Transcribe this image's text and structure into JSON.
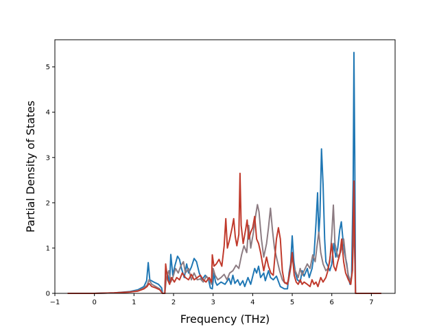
{
  "chart_data": {
    "type": "line",
    "title": "",
    "xlabel": "Frequency (THz)",
    "ylabel": "Partial Density of States",
    "xlim": [
      -1.0,
      7.6
    ],
    "ylim": [
      0,
      5.6
    ],
    "xticks": [
      -1,
      0,
      1,
      2,
      3,
      4,
      5,
      6,
      7
    ],
    "yticks": [
      0,
      1,
      2,
      3,
      4,
      5
    ],
    "grid": false,
    "legend": "none",
    "series": [
      {
        "color": "#1f77b4",
        "points": [
          [
            -0.68,
            0
          ],
          [
            0,
            0
          ],
          [
            0.5,
            0.01
          ],
          [
            0.9,
            0.04
          ],
          [
            1.1,
            0.08
          ],
          [
            1.25,
            0.15
          ],
          [
            1.32,
            0.28
          ],
          [
            1.36,
            0.68
          ],
          [
            1.4,
            0.3
          ],
          [
            1.5,
            0.25
          ],
          [
            1.62,
            0.2
          ],
          [
            1.7,
            0.12
          ],
          [
            1.72,
            0.0
          ],
          [
            1.78,
            0.0
          ],
          [
            1.8,
            0.55
          ],
          [
            1.85,
            0.42
          ],
          [
            1.9,
            0.25
          ],
          [
            1.93,
            0.86
          ],
          [
            1.98,
            0.4
          ],
          [
            2.03,
            0.6
          ],
          [
            2.1,
            0.82
          ],
          [
            2.15,
            0.75
          ],
          [
            2.2,
            0.55
          ],
          [
            2.27,
            0.35
          ],
          [
            2.33,
            0.65
          ],
          [
            2.38,
            0.45
          ],
          [
            2.45,
            0.58
          ],
          [
            2.52,
            0.77
          ],
          [
            2.58,
            0.7
          ],
          [
            2.65,
            0.45
          ],
          [
            2.72,
            0.3
          ],
          [
            2.8,
            0.4
          ],
          [
            2.88,
            0.32
          ],
          [
            2.93,
            0.12
          ],
          [
            2.98,
            0.1
          ],
          [
            3.02,
            0.45
          ],
          [
            3.06,
            0.25
          ],
          [
            3.1,
            0.18
          ],
          [
            3.2,
            0.25
          ],
          [
            3.3,
            0.2
          ],
          [
            3.4,
            0.33
          ],
          [
            3.45,
            0.2
          ],
          [
            3.5,
            0.4
          ],
          [
            3.55,
            0.22
          ],
          [
            3.62,
            0.3
          ],
          [
            3.68,
            0.18
          ],
          [
            3.75,
            0.28
          ],
          [
            3.8,
            0.15
          ],
          [
            3.88,
            0.35
          ],
          [
            3.95,
            0.2
          ],
          [
            4.05,
            0.55
          ],
          [
            4.1,
            0.45
          ],
          [
            4.15,
            0.6
          ],
          [
            4.2,
            0.35
          ],
          [
            4.28,
            0.45
          ],
          [
            4.32,
            0.28
          ],
          [
            4.4,
            0.5
          ],
          [
            4.45,
            0.35
          ],
          [
            4.52,
            0.3
          ],
          [
            4.6,
            0.38
          ],
          [
            4.7,
            0.15
          ],
          [
            4.8,
            0.1
          ],
          [
            4.88,
            0.1
          ],
          [
            4.92,
            0.45
          ],
          [
            4.96,
            0.65
          ],
          [
            5.0,
            1.27
          ],
          [
            5.04,
            0.7
          ],
          [
            5.08,
            0.45
          ],
          [
            5.13,
            0.3
          ],
          [
            5.2,
            0.25
          ],
          [
            5.25,
            0.5
          ],
          [
            5.3,
            0.38
          ],
          [
            5.38,
            0.55
          ],
          [
            5.43,
            0.35
          ],
          [
            5.5,
            0.55
          ],
          [
            5.55,
            0.85
          ],
          [
            5.6,
            1.55
          ],
          [
            5.64,
            2.22
          ],
          [
            5.67,
            1.3
          ],
          [
            5.7,
            1.7
          ],
          [
            5.74,
            3.19
          ],
          [
            5.78,
            2.4
          ],
          [
            5.82,
            1.2
          ],
          [
            5.85,
            0.7
          ],
          [
            5.9,
            0.6
          ],
          [
            5.95,
            0.5
          ],
          [
            6.0,
            0.65
          ],
          [
            6.05,
            1.1
          ],
          [
            6.1,
            0.8
          ],
          [
            6.15,
            1.0
          ],
          [
            6.2,
            1.4
          ],
          [
            6.24,
            1.58
          ],
          [
            6.28,
            1.2
          ],
          [
            6.32,
            0.9
          ],
          [
            6.38,
            0.65
          ],
          [
            6.42,
            0.35
          ],
          [
            6.46,
            0.2
          ],
          [
            6.5,
            0.4
          ],
          [
            6.54,
            2.5
          ],
          [
            6.56,
            5.32
          ],
          [
            6.58,
            3.0
          ],
          [
            6.6,
            0.0
          ],
          [
            7.25,
            0.0
          ]
        ]
      },
      {
        "color": "#8c7b82",
        "points": [
          [
            -0.68,
            0
          ],
          [
            0,
            0
          ],
          [
            0.5,
            0.01
          ],
          [
            0.9,
            0.03
          ],
          [
            1.1,
            0.06
          ],
          [
            1.25,
            0.12
          ],
          [
            1.33,
            0.18
          ],
          [
            1.38,
            0.3
          ],
          [
            1.45,
            0.2
          ],
          [
            1.55,
            0.15
          ],
          [
            1.65,
            0.1
          ],
          [
            1.72,
            0.0
          ],
          [
            1.78,
            0.0
          ],
          [
            1.82,
            0.35
          ],
          [
            1.88,
            0.5
          ],
          [
            1.93,
            0.25
          ],
          [
            1.98,
            0.35
          ],
          [
            2.05,
            0.55
          ],
          [
            2.12,
            0.45
          ],
          [
            2.18,
            0.6
          ],
          [
            2.25,
            0.7
          ],
          [
            2.3,
            0.45
          ],
          [
            2.38,
            0.55
          ],
          [
            2.45,
            0.3
          ],
          [
            2.52,
            0.45
          ],
          [
            2.6,
            0.3
          ],
          [
            2.68,
            0.32
          ],
          [
            2.75,
            0.25
          ],
          [
            2.83,
            0.38
          ],
          [
            2.9,
            0.3
          ],
          [
            2.96,
            0.2
          ],
          [
            3.0,
            0.55
          ],
          [
            3.05,
            0.4
          ],
          [
            3.12,
            0.3
          ],
          [
            3.2,
            0.35
          ],
          [
            3.28,
            0.42
          ],
          [
            3.35,
            0.3
          ],
          [
            3.42,
            0.45
          ],
          [
            3.5,
            0.5
          ],
          [
            3.58,
            0.62
          ],
          [
            3.65,
            0.55
          ],
          [
            3.72,
            0.85
          ],
          [
            3.78,
            1.05
          ],
          [
            3.85,
            0.9
          ],
          [
            3.9,
            1.5
          ],
          [
            3.95,
            1.0
          ],
          [
            4.02,
            1.35
          ],
          [
            4.08,
            1.75
          ],
          [
            4.12,
            1.96
          ],
          [
            4.16,
            1.8
          ],
          [
            4.22,
            1.2
          ],
          [
            4.28,
            0.8
          ],
          [
            4.35,
            1.1
          ],
          [
            4.4,
            1.45
          ],
          [
            4.45,
            1.88
          ],
          [
            4.5,
            1.4
          ],
          [
            4.55,
            1.0
          ],
          [
            4.6,
            0.8
          ],
          [
            4.68,
            0.5
          ],
          [
            4.75,
            0.3
          ],
          [
            4.82,
            0.22
          ],
          [
            4.9,
            0.25
          ],
          [
            4.95,
            0.5
          ],
          [
            5.0,
            0.8
          ],
          [
            5.05,
            0.55
          ],
          [
            5.1,
            0.45
          ],
          [
            5.15,
            0.35
          ],
          [
            5.2,
            0.55
          ],
          [
            5.25,
            0.4
          ],
          [
            5.3,
            0.5
          ],
          [
            5.38,
            0.65
          ],
          [
            5.45,
            0.55
          ],
          [
            5.52,
            0.85
          ],
          [
            5.58,
            0.7
          ],
          [
            5.62,
            1.0
          ],
          [
            5.67,
            1.35
          ],
          [
            5.72,
            0.9
          ],
          [
            5.78,
            0.65
          ],
          [
            5.85,
            0.5
          ],
          [
            5.9,
            0.55
          ],
          [
            5.95,
            0.7
          ],
          [
            6.0,
            1.3
          ],
          [
            6.04,
            1.95
          ],
          [
            6.08,
            1.1
          ],
          [
            6.15,
            0.8
          ],
          [
            6.22,
            0.9
          ],
          [
            6.3,
            1.2
          ],
          [
            6.36,
            0.7
          ],
          [
            6.42,
            0.4
          ],
          [
            6.48,
            0.25
          ],
          [
            6.52,
            0.5
          ],
          [
            6.56,
            1.6
          ],
          [
            6.58,
            0.8
          ],
          [
            6.6,
            0.0
          ],
          [
            7.25,
            0.0
          ]
        ]
      },
      {
        "color": "#c0392b",
        "points": [
          [
            -0.68,
            0
          ],
          [
            0,
            0
          ],
          [
            0.5,
            0.01
          ],
          [
            0.9,
            0.03
          ],
          [
            1.1,
            0.05
          ],
          [
            1.25,
            0.1
          ],
          [
            1.33,
            0.15
          ],
          [
            1.38,
            0.22
          ],
          [
            1.45,
            0.15
          ],
          [
            1.55,
            0.12
          ],
          [
            1.65,
            0.08
          ],
          [
            1.72,
            0.0
          ],
          [
            1.78,
            0.0
          ],
          [
            1.8,
            0.65
          ],
          [
            1.85,
            0.3
          ],
          [
            1.9,
            0.2
          ],
          [
            1.95,
            0.35
          ],
          [
            2.02,
            0.25
          ],
          [
            2.08,
            0.35
          ],
          [
            2.15,
            0.3
          ],
          [
            2.22,
            0.45
          ],
          [
            2.3,
            0.35
          ],
          [
            2.38,
            0.3
          ],
          [
            2.45,
            0.42
          ],
          [
            2.52,
            0.3
          ],
          [
            2.6,
            0.35
          ],
          [
            2.68,
            0.4
          ],
          [
            2.75,
            0.3
          ],
          [
            2.82,
            0.25
          ],
          [
            2.9,
            0.35
          ],
          [
            2.96,
            0.25
          ],
          [
            2.98,
            0.85
          ],
          [
            3.02,
            0.6
          ],
          [
            3.08,
            0.65
          ],
          [
            3.15,
            0.75
          ],
          [
            3.22,
            0.6
          ],
          [
            3.28,
            1.05
          ],
          [
            3.32,
            1.65
          ],
          [
            3.36,
            1.0
          ],
          [
            3.42,
            1.2
          ],
          [
            3.48,
            1.45
          ],
          [
            3.52,
            1.65
          ],
          [
            3.56,
            1.25
          ],
          [
            3.6,
            1.05
          ],
          [
            3.65,
            1.3
          ],
          [
            3.68,
            2.65
          ],
          [
            3.71,
            1.5
          ],
          [
            3.76,
            1.1
          ],
          [
            3.82,
            1.4
          ],
          [
            3.86,
            1.62
          ],
          [
            3.9,
            1.2
          ],
          [
            3.95,
            1.35
          ],
          [
            4.0,
            1.45
          ],
          [
            4.05,
            1.7
          ],
          [
            4.1,
            1.2
          ],
          [
            4.15,
            1.1
          ],
          [
            4.2,
            0.9
          ],
          [
            4.28,
            0.5
          ],
          [
            4.35,
            0.8
          ],
          [
            4.4,
            0.6
          ],
          [
            4.46,
            0.45
          ],
          [
            4.52,
            0.4
          ],
          [
            4.55,
            0.7
          ],
          [
            4.6,
            1.2
          ],
          [
            4.65,
            1.45
          ],
          [
            4.7,
            1.2
          ],
          [
            4.75,
            0.5
          ],
          [
            4.8,
            0.25
          ],
          [
            4.88,
            0.2
          ],
          [
            4.95,
            0.55
          ],
          [
            5.0,
            0.9
          ],
          [
            5.05,
            0.4
          ],
          [
            5.1,
            0.25
          ],
          [
            5.15,
            0.2
          ],
          [
            5.2,
            0.3
          ],
          [
            5.25,
            0.2
          ],
          [
            5.3,
            0.25
          ],
          [
            5.38,
            0.2
          ],
          [
            5.45,
            0.15
          ],
          [
            5.5,
            0.3
          ],
          [
            5.55,
            0.2
          ],
          [
            5.6,
            0.25
          ],
          [
            5.65,
            0.15
          ],
          [
            5.72,
            0.35
          ],
          [
            5.78,
            0.25
          ],
          [
            5.85,
            0.35
          ],
          [
            5.9,
            0.5
          ],
          [
            5.95,
            0.75
          ],
          [
            6.0,
            1.1
          ],
          [
            6.05,
            0.6
          ],
          [
            6.1,
            0.5
          ],
          [
            6.15,
            0.7
          ],
          [
            6.2,
            0.85
          ],
          [
            6.25,
            1.2
          ],
          [
            6.3,
            0.7
          ],
          [
            6.35,
            0.45
          ],
          [
            6.42,
            0.3
          ],
          [
            6.48,
            0.2
          ],
          [
            6.52,
            0.5
          ],
          [
            6.56,
            2.48
          ],
          [
            6.58,
            1.0
          ],
          [
            6.6,
            0.0
          ],
          [
            7.25,
            0.0
          ]
        ]
      }
    ]
  }
}
